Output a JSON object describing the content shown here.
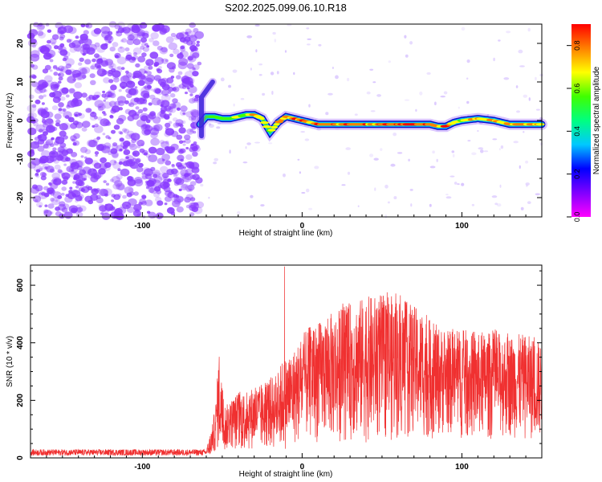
{
  "title": "S202.2025.099.06.10.R18",
  "colors": {
    "snr_line": "#f03030",
    "noise_dots": "#8a3cff",
    "colorbar": [
      "#ff00ff",
      "#8000ff",
      "#0000ff",
      "#00c8ff",
      "#00ff80",
      "#40ff00",
      "#ffff00",
      "#ff8000",
      "#ff0000"
    ]
  },
  "chart_data": [
    {
      "type": "heatmap",
      "title": "S202.2025.099.06.10.R18",
      "xlabel": "Height of straight line (km)",
      "ylabel": "Frequency (Hz)",
      "xlim": [
        -170,
        150
      ],
      "ylim": [
        -25,
        25
      ],
      "x_ticks": [
        -100,
        0,
        100
      ],
      "y_ticks": [
        -20,
        -10,
        0,
        10,
        20
      ],
      "grid": false,
      "colorbar": {
        "label": "Normalized spectral amplitude",
        "range": [
          0.0,
          0.9
        ],
        "ticks": [
          "0.0",
          "0.2",
          "0.4",
          "0.6",
          "0.8"
        ]
      },
      "noise_region_x": [
        -170,
        -64
      ],
      "signal_trace": {
        "x": [
          -64,
          -60,
          -55,
          -50,
          -45,
          -40,
          -35,
          -30,
          -25,
          -20,
          -15,
          -10,
          -5,
          0,
          10,
          20,
          30,
          40,
          50,
          60,
          70,
          80,
          85,
          90,
          95,
          100,
          110,
          120,
          130,
          140,
          150
        ],
        "y": [
          -1,
          1,
          1,
          0.5,
          0.5,
          1,
          1.5,
          1.5,
          0.5,
          -3,
          -0.5,
          1,
          0.5,
          0,
          -1,
          -1,
          -1,
          -1,
          -1,
          -1,
          -1,
          -1,
          -1.5,
          -1.5,
          -0.5,
          0,
          0.5,
          0,
          -1,
          -1,
          -1
        ],
        "amplitude": [
          0.3,
          0.5,
          0.6,
          0.6,
          0.6,
          0.7,
          0.7,
          0.75,
          0.7,
          0.6,
          0.75,
          0.8,
          0.8,
          0.85,
          0.85,
          0.85,
          0.85,
          0.85,
          0.85,
          0.85,
          0.85,
          0.85,
          0.8,
          0.85,
          0.7,
          0.7,
          0.75,
          0.7,
          0.8,
          0.8,
          0.75
        ]
      }
    },
    {
      "type": "line",
      "xlabel": "Height of straight line (km)",
      "ylabel": "SNR (10 * v/v)",
      "xlim": [
        -170,
        150
      ],
      "ylim": [
        0,
        670
      ],
      "x_ticks": [
        -100,
        0,
        100
      ],
      "y_ticks": [
        0,
        200,
        400,
        600
      ],
      "grid": false,
      "envelope": {
        "x": [
          -170,
          -60,
          -56,
          -54,
          -52,
          -50,
          -48,
          -45,
          -40,
          -35,
          -30,
          -25,
          -20,
          -15,
          -12,
          -10,
          -5,
          0,
          5,
          10,
          15,
          20,
          30,
          40,
          50,
          60,
          70,
          80,
          90,
          100,
          110,
          120,
          130,
          140,
          150
        ],
        "upper": [
          30,
          30,
          120,
          200,
          380,
          250,
          180,
          200,
          230,
          230,
          250,
          250,
          280,
          300,
          350,
          350,
          380,
          420,
          460,
          470,
          490,
          510,
          540,
          560,
          570,
          560,
          530,
          480,
          440,
          450,
          430,
          440,
          430,
          430,
          400
        ],
        "lower": [
          5,
          5,
          10,
          20,
          20,
          20,
          20,
          30,
          20,
          20,
          30,
          20,
          30,
          20,
          20,
          30,
          40,
          50,
          60,
          50,
          60,
          50,
          60,
          50,
          60,
          50,
          70,
          60,
          80,
          60,
          60,
          60,
          70,
          60,
          60
        ]
      },
      "spike": {
        "x": -11,
        "y": 665
      }
    }
  ]
}
